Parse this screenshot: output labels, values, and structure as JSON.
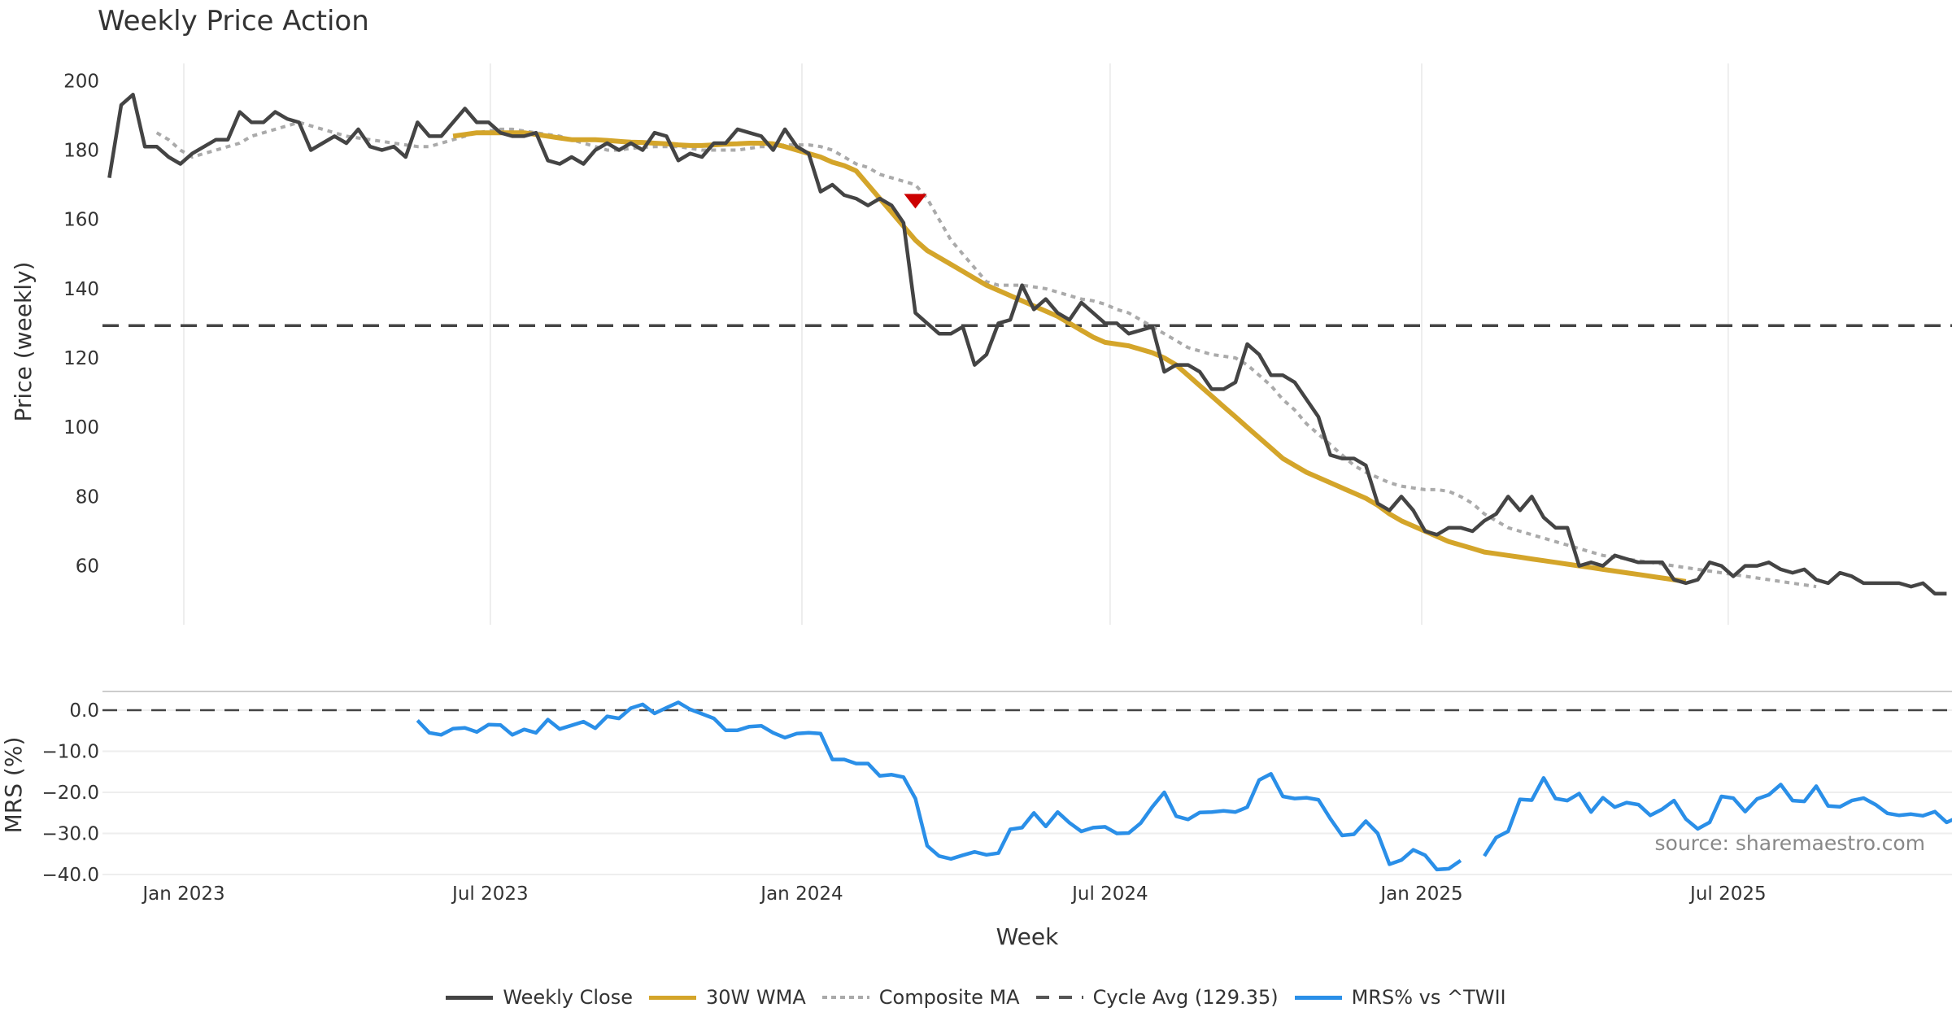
{
  "chart_data": [
    {
      "type": "line",
      "title": "Weekly Price Action",
      "xlabel": "",
      "ylabel": "Price (weekly)",
      "ylim": [
        43,
        205
      ],
      "yticks": [
        60,
        80,
        100,
        120,
        140,
        160,
        180,
        200
      ],
      "x_start": "2022-11-18",
      "x_step_days": 7,
      "xticks": [
        {
          "date": "2023-01-01",
          "label": "Jan 2023"
        },
        {
          "date": "2023-07-01",
          "label": "Jul 2023"
        },
        {
          "date": "2024-01-01",
          "label": "Jan 2024"
        },
        {
          "date": "2024-07-01",
          "label": "Jul 2024"
        },
        {
          "date": "2025-01-01",
          "label": "Jan 2025"
        },
        {
          "date": "2025-07-01",
          "label": "Jul 2025"
        }
      ],
      "grid": "vertical",
      "series": [
        {
          "name": "Weekly Close",
          "color": "#444444",
          "style": "solid",
          "values": [
            172,
            193,
            196,
            181,
            181,
            178,
            176,
            179,
            181,
            183,
            183,
            191,
            188,
            188,
            191,
            189,
            188,
            180,
            182,
            184,
            182,
            186,
            181,
            180,
            181,
            178,
            188,
            184,
            184,
            188,
            192,
            188,
            188,
            185,
            184,
            184,
            185,
            177,
            176,
            178,
            176,
            180,
            182,
            180,
            182,
            180,
            185,
            184,
            177,
            179,
            178,
            182,
            182,
            186,
            185,
            184,
            180,
            186,
            181,
            179,
            168,
            170,
            167,
            166,
            164,
            166,
            164,
            159,
            133,
            130,
            127,
            127,
            129,
            118,
            121,
            130,
            131,
            141,
            134,
            137,
            133,
            131,
            136,
            133,
            130,
            130,
            127,
            128,
            129,
            116,
            118,
            118,
            116,
            111,
            111,
            113,
            124,
            121,
            115,
            115,
            113,
            108,
            103,
            92,
            91,
            91,
            89,
            78,
            76,
            80,
            76,
            70,
            69,
            71,
            71,
            70,
            73,
            75,
            80,
            76,
            80,
            74,
            71,
            71,
            60,
            61,
            60,
            63,
            62,
            61,
            61,
            61,
            56,
            55,
            56,
            61,
            60,
            57,
            60,
            60,
            61,
            59,
            58,
            59,
            56,
            55,
            58,
            57,
            55,
            55,
            55,
            55,
            54,
            55,
            52,
            52
          ]
        },
        {
          "name": "30W WMA",
          "color": "#D4A52A",
          "style": "solid",
          "start_index": 29,
          "values": [
            184,
            184.5,
            185,
            185,
            185,
            185,
            185,
            184.5,
            184,
            183.5,
            183,
            183,
            183,
            182.8,
            182.5,
            182.3,
            182.2,
            182,
            181.8,
            181.5,
            181.3,
            181.3,
            181.5,
            181.7,
            181.8,
            182,
            182,
            181.8,
            181,
            180,
            179,
            178,
            176.5,
            175.5,
            174,
            170,
            166,
            162,
            158,
            154,
            151,
            149,
            147,
            145,
            143,
            141,
            139.5,
            138,
            136.5,
            135,
            133.5,
            132,
            130,
            128,
            126,
            124.5,
            124,
            123.5,
            122.5,
            121.5,
            120,
            118,
            115,
            112,
            109,
            106,
            103,
            100,
            97,
            94,
            91,
            89,
            87,
            85.5,
            84,
            82.5,
            81,
            79.5,
            77.5,
            75,
            73,
            71.5,
            70,
            68.5,
            67,
            66,
            65,
            64,
            63.5,
            63,
            62.5,
            62,
            61.5,
            61,
            60.5,
            60,
            59.5,
            59,
            58.5,
            58,
            57.5,
            57,
            56.5,
            56,
            55.5
          ]
        },
        {
          "name": "Composite MA",
          "color": "#AAAAAA",
          "style": "dotted",
          "start_index": 4,
          "values": [
            185,
            183,
            180,
            178,
            179,
            180,
            181,
            182,
            184,
            185,
            186,
            187,
            188,
            187,
            186,
            185,
            184,
            183.5,
            183,
            182.5,
            182,
            181.5,
            181,
            181,
            182,
            183,
            184,
            185,
            185.5,
            186,
            186,
            185.5,
            185,
            184.5,
            184,
            183,
            182,
            181,
            180,
            180,
            180.5,
            180.8,
            181,
            181,
            181,
            180.5,
            180,
            180,
            180,
            180,
            180.5,
            181,
            181,
            181.5,
            181.5,
            181.5,
            181,
            180,
            178,
            176,
            175,
            173,
            172,
            171,
            170,
            166,
            160,
            154,
            150,
            146,
            142,
            141,
            141,
            141,
            140.5,
            140,
            139,
            138,
            137,
            136.5,
            135.5,
            134,
            133,
            131,
            129,
            127,
            125,
            123,
            122,
            121,
            120.5,
            120,
            118,
            115,
            112,
            108,
            105,
            101,
            98,
            95,
            92,
            89,
            87,
            85.5,
            84,
            83,
            82.5,
            82,
            82,
            81.5,
            80,
            78,
            75,
            73,
            71,
            70,
            69,
            68,
            67,
            66,
            65,
            64,
            63,
            62.5,
            62,
            61.5,
            61,
            60.5,
            60,
            59.5,
            59,
            58.5,
            58,
            57.5,
            57,
            56.5,
            56,
            55.5,
            55,
            54.5,
            54
          ]
        },
        {
          "name": "Cycle Avg (129.35)",
          "color": "#444444",
          "style": "dashed",
          "constant": 129.35
        }
      ],
      "annotations": [
        {
          "type": "marker",
          "shape": "down-triangle",
          "color": "#CC0000",
          "index": 68,
          "value": 165
        }
      ]
    },
    {
      "type": "line",
      "xlabel": "Week",
      "ylabel": "MRS (%)",
      "ylim": [
        -41,
        2.5
      ],
      "yticks": [
        0.0,
        -10.0,
        -20.0,
        -30.0,
        -40.0
      ],
      "ytick_labels": [
        "0.0",
        "−10.0",
        "−20.0",
        "−30.0",
        "−40.0"
      ],
      "zero_line": "dashed",
      "series": [
        {
          "name": "MRS% vs ^TWII",
          "color": "#2A8FE8",
          "start_index": 26,
          "values": [
            -2.5,
            -5.5,
            -6,
            -4.5,
            -4.3,
            -5.3,
            -3.5,
            -3.6,
            -6,
            -4.7,
            -5.5,
            -2.3,
            -4.6,
            -3.7,
            -2.8,
            -4.4,
            -1.5,
            -2,
            0.5,
            1.4,
            -0.8,
            0.6,
            1.9,
            0.2,
            -0.9,
            -2,
            -4.9,
            -4.9,
            -4,
            -3.8,
            -5.5,
            -6.7,
            -5.7,
            -5.5,
            -5.7,
            -12,
            -12,
            -13,
            -13,
            -16,
            -15.7,
            -16.3,
            -21.5,
            -33,
            -35.5,
            -36.2,
            -35.3,
            -34.5,
            -35.2,
            -34.8,
            -29,
            -28.6,
            -25,
            -28.3,
            -24.8,
            -27.4,
            -29.5,
            -28.6,
            -28.4,
            -30,
            -29.9,
            -27.5,
            -23.5,
            -20,
            -25.8,
            -26.6,
            -24.9,
            -24.8,
            -24.5,
            -24.8,
            -23.6,
            -17,
            -15.5,
            -21,
            -21.5,
            -21.3,
            -21.8,
            -26.4,
            -30.5,
            -30.2,
            -27,
            -30,
            -37.5,
            -36.5,
            -34,
            -35.3,
            -38.8,
            -38.6,
            -36.6,
            null,
            -35.5,
            -31,
            -29.5,
            -21.7,
            -21.9,
            -16.5,
            -21.5,
            -22,
            -20.3,
            -24.8,
            -21.3,
            -23.6,
            -22.5,
            -23,
            -25.6,
            -24.1,
            -22,
            -26.5,
            -28.9,
            -27.3,
            -21,
            -21.4,
            -24.7,
            -21.6,
            -20.6,
            -18.1,
            -22,
            -22.2,
            -18.5,
            -23.3,
            -23.5,
            -22,
            -21.4,
            -23,
            -25.1,
            -25.6,
            -25.3,
            -25.7,
            -24.7,
            -27.3,
            -26
          ]
        }
      ],
      "annotations": [
        {
          "type": "text",
          "text": "source: sharemaestro.com",
          "position": "bottom-right"
        }
      ]
    }
  ],
  "legend": {
    "placement": "bottom-center",
    "items": [
      {
        "label": "Weekly Close",
        "color": "#444444",
        "style": "solid"
      },
      {
        "label": "30W WMA",
        "color": "#D4A52A",
        "style": "solid"
      },
      {
        "label": "Composite MA",
        "color": "#AAAAAA",
        "style": "dotted"
      },
      {
        "label": "Cycle Avg (129.35)",
        "color": "#555555",
        "style": "dashed"
      },
      {
        "label": "MRS% vs ^TWII",
        "color": "#2A8FE8",
        "style": "solid"
      }
    ]
  },
  "source_text": "source: sharemaestro.com"
}
